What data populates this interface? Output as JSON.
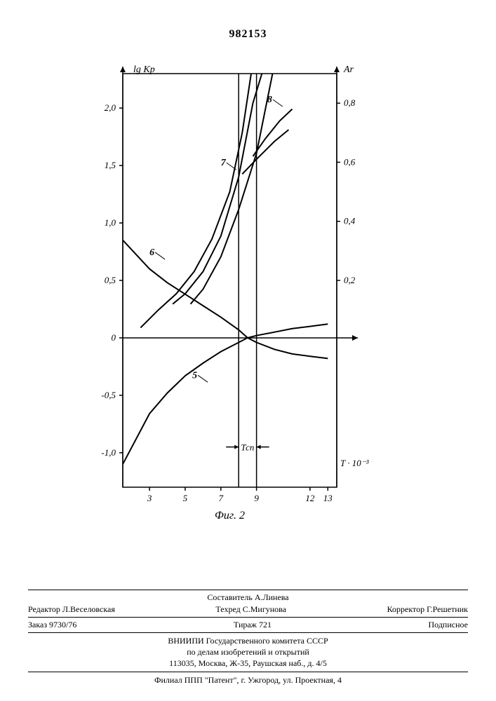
{
  "doc_number": "982153",
  "chart": {
    "type": "line",
    "caption": "Фиг. 2",
    "background_color": "#ffffff",
    "axis_color": "#000000",
    "line_color": "#000000",
    "line_width": 2,
    "font_family": "serif",
    "left_axis": {
      "label": "lg Kp",
      "label_fontsize": 14,
      "ticks": [
        -1.0,
        -0.5,
        0,
        0.5,
        1.0,
        1.5,
        2.0
      ],
      "tick_labels": [
        "-1,0",
        "-0,5",
        "0",
        "0,5",
        "1,0",
        "1,5",
        "2,0"
      ],
      "tick_fontsize": 13,
      "ylim": [
        -1.3,
        2.3
      ]
    },
    "right_axis": {
      "label": "Ar",
      "label_fontsize": 14,
      "ticks": [
        0.2,
        0.4,
        0.6,
        0.8
      ],
      "tick_labels": [
        "0,2",
        "0,4",
        "0,6",
        "0,8"
      ],
      "tick_fontsize": 13,
      "ylim": [
        -0.5,
        0.9
      ]
    },
    "x_axis": {
      "label": "T · 10⁻³ °C",
      "label_fontsize": 13,
      "ticks": [
        3,
        5,
        7,
        9,
        12,
        13
      ],
      "tick_labels": [
        "3",
        "5",
        "7",
        "9",
        "12",
        "13"
      ],
      "tick_fontsize": 13,
      "xlim": [
        1.5,
        13.5
      ]
    },
    "t_region": {
      "label": "Тсп",
      "x_start": 8.0,
      "x_end": 9.0
    },
    "curves": [
      {
        "id": "5",
        "axis": "left",
        "points": [
          [
            1.5,
            -1.1
          ],
          [
            3,
            -0.66
          ],
          [
            4,
            -0.48
          ],
          [
            5,
            -0.33
          ],
          [
            6,
            -0.22
          ],
          [
            7,
            -0.12
          ],
          [
            8,
            -0.04
          ],
          [
            8.5,
            0.0
          ],
          [
            9,
            0.02
          ],
          [
            10,
            0.05
          ],
          [
            11,
            0.08
          ],
          [
            12,
            0.1
          ],
          [
            13,
            0.12
          ]
        ]
      },
      {
        "id": "6",
        "axis": "left",
        "points": [
          [
            1.5,
            0.85
          ],
          [
            3,
            0.6
          ],
          [
            4,
            0.48
          ],
          [
            5,
            0.38
          ],
          [
            6,
            0.28
          ],
          [
            7,
            0.18
          ],
          [
            8,
            0.07
          ],
          [
            8.5,
            0.0
          ],
          [
            9,
            -0.04
          ],
          [
            10,
            -0.1
          ],
          [
            11,
            -0.14
          ],
          [
            12,
            -0.16
          ],
          [
            13,
            -0.18
          ]
        ]
      },
      {
        "id": "7",
        "axis": "right",
        "points": [
          [
            2.5,
            0.04
          ],
          [
            3.5,
            0.1
          ],
          [
            4.5,
            0.155
          ],
          [
            5.5,
            0.23
          ],
          [
            6.5,
            0.34
          ],
          [
            7.5,
            0.5
          ],
          [
            8.2,
            0.7
          ],
          [
            8.7,
            0.9
          ]
        ]
      },
      {
        "id": "7b",
        "axis": "right",
        "points": [
          [
            4.3,
            0.12
          ],
          [
            5,
            0.155
          ],
          [
            6,
            0.23
          ],
          [
            7,
            0.35
          ],
          [
            8,
            0.55
          ],
          [
            8.8,
            0.8
          ],
          [
            9.3,
            0.9
          ]
        ]
      },
      {
        "id": "8",
        "axis": "right",
        "points": [
          [
            5.3,
            0.12
          ],
          [
            6,
            0.17
          ],
          [
            7,
            0.28
          ],
          [
            8,
            0.44
          ],
          [
            9,
            0.63
          ],
          [
            9.5,
            0.78
          ],
          [
            9.9,
            0.9
          ]
        ]
      },
      {
        "id": "flatA",
        "axis": "right",
        "points": [
          [
            8.2,
            0.56
          ],
          [
            9,
            0.61
          ],
          [
            10,
            0.67
          ],
          [
            10.8,
            0.71
          ]
        ]
      },
      {
        "id": "flatB",
        "axis": "right",
        "points": [
          [
            8.8,
            0.62
          ],
          [
            9.5,
            0.68
          ],
          [
            10.3,
            0.74
          ],
          [
            11.0,
            0.78
          ]
        ]
      }
    ],
    "curve_labels": [
      {
        "text": "5",
        "x": 5.4,
        "y_left": -0.35
      },
      {
        "text": "6",
        "x": 3.0,
        "y_left": 0.72
      },
      {
        "text": "7",
        "x": 7.0,
        "y_left": 1.5
      },
      {
        "text": "8",
        "x": 9.6,
        "y_left": 2.05
      }
    ]
  },
  "footer": {
    "compiler_label": "Составитель А.Линева",
    "editor_label": "Редактор Л.Веселовская",
    "technical_editor_label": "Техред С.Мигунова",
    "proofreader_label": "Корректор Г.Решетник",
    "order": "Заказ 9730/76",
    "print_run": "Тираж 721",
    "subscription": "Подписное",
    "org_line1": "ВНИИПИ Государственного комитета СССР",
    "org_line2": "по делам изобретений и открытий",
    "address": "113035, Москва, Ж-35, Раушская наб., д. 4/5",
    "branch": "Филиал ППП \"Патент\", г. Ужгород, ул. Проектная, 4"
  }
}
